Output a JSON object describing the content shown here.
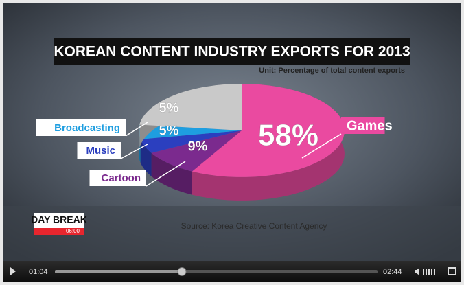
{
  "chart_data": {
    "type": "pie",
    "title": "KOREAN CONTENT INDUSTRY EXPORTS FOR 2013",
    "subtitle": "Unit: Percentage of total content exports",
    "source": "Source: Korea Creative Content Agency",
    "categories": [
      "Games",
      "Cartoon",
      "Music",
      "Broadcasting",
      null
    ],
    "values": [
      58,
      9,
      5,
      5,
      23
    ],
    "value_labels": [
      "58%",
      "9%",
      "5%",
      "5%",
      null
    ],
    "colors": [
      "#ea4aa0",
      "#7b2a8e",
      "#2b3fbf",
      "#1e9ee0",
      "#c9c9c9"
    ]
  },
  "logo": {
    "title": "DAY BREAK",
    "time": "06:00"
  },
  "player": {
    "current_time": "01:04",
    "duration": "02:44"
  }
}
